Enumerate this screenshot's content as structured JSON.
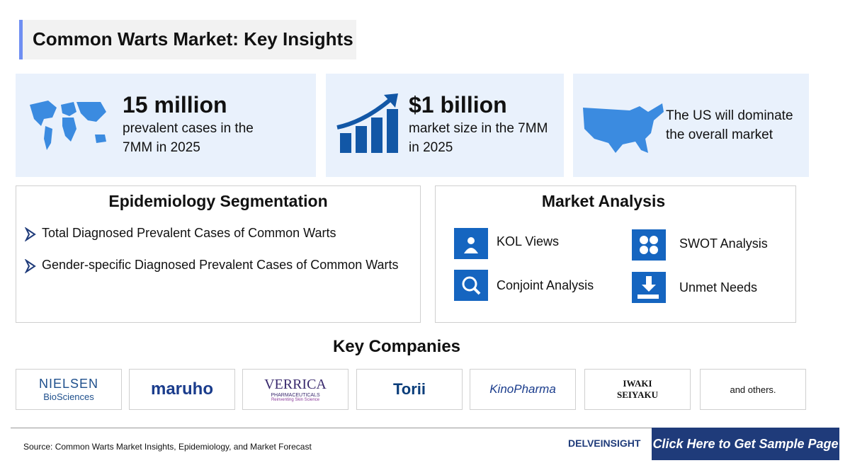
{
  "header": {
    "title": "Common Warts Market: Key Insights"
  },
  "highlights": [
    {
      "headline": "15 million",
      "text": "prevalent cases in the 7MM in 2025"
    },
    {
      "headline": "$1 billion",
      "text": "market size in the 7MM in 2025"
    },
    {
      "text": "The US will dominate the overall market"
    }
  ],
  "epidemiology": {
    "title": "Epidemiology Segmentation",
    "items": [
      "Total Diagnosed Prevalent Cases of Common Warts",
      "Gender-specific Diagnosed Prevalent Cases of Common Warts"
    ]
  },
  "market_analysis": {
    "title": "Market Analysis",
    "items": [
      "KOL Views",
      "SWOT Analysis",
      "Conjoint Analysis",
      "Unmet Needs"
    ]
  },
  "companies": {
    "title": "Key Companies",
    "logos": [
      {
        "name": "NIELSEN",
        "sub": "BioSciences"
      },
      {
        "name": "maruho"
      },
      {
        "name": "VERRICA",
        "sub": "PHARMACEUTICALS",
        "tagline": "Reinventing Skin Science"
      },
      {
        "name": "Torii"
      },
      {
        "name": "KinoPharma"
      },
      {
        "name": "IWAKI",
        "sub": "SEIYAKU"
      }
    ],
    "others": "and others."
  },
  "footer": {
    "source": "Source: Common Warts Market Insights, Epidemiology, and Market Forecast",
    "brand": "DELVEINSIGHT",
    "cta": "Click Here to Get Sample Page"
  }
}
